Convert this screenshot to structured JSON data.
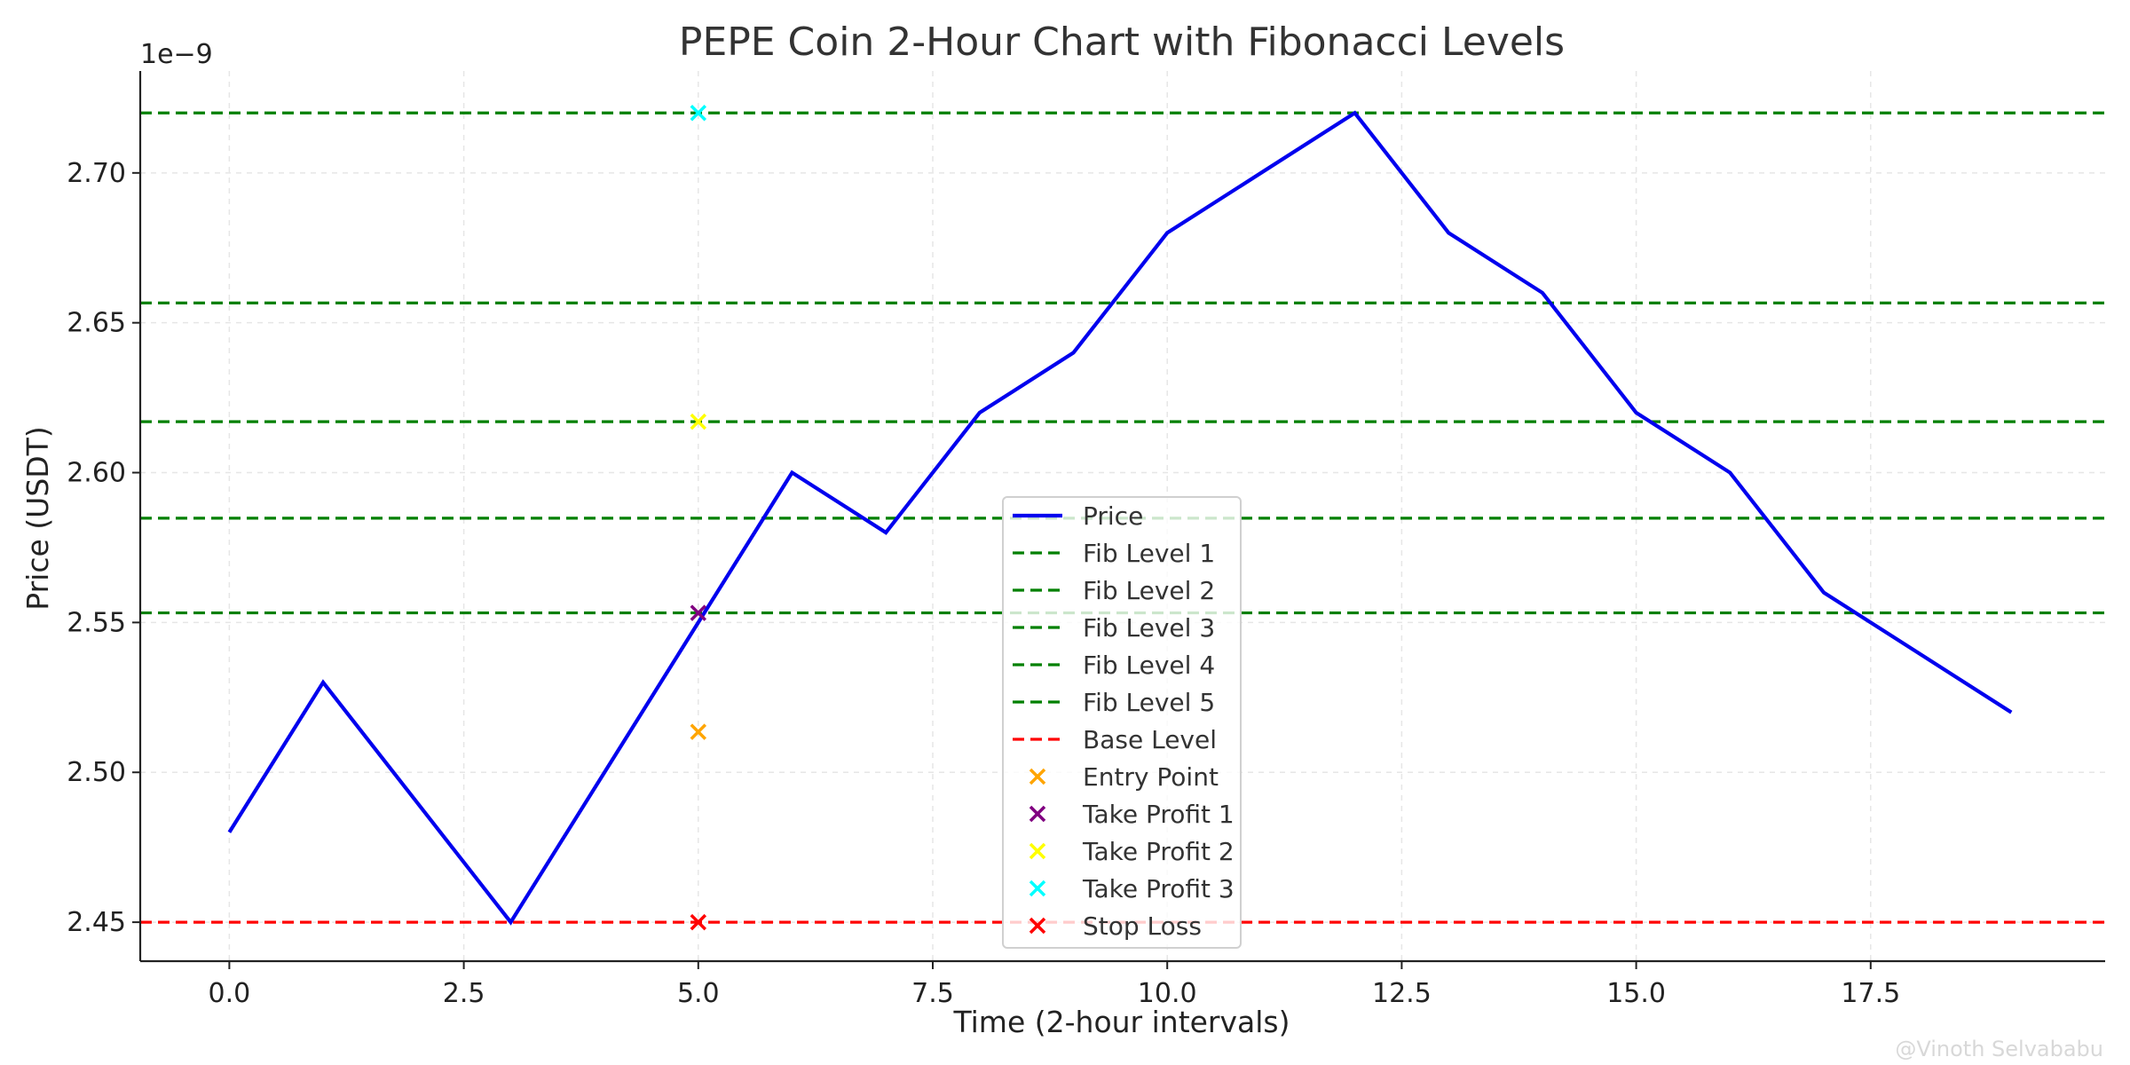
{
  "chart_data": {
    "type": "line",
    "title": "PEPE Coin 2-Hour Chart with Fibonacci Levels",
    "xlabel": "Time (2-hour intervals)",
    "ylabel": "Price (USDT)",
    "y_offset_label": "1e−9",
    "xlim": [
      -0.95,
      20.0
    ],
    "ylim": [
      2.437,
      2.734
    ],
    "x_ticks": [
      0.0,
      2.5,
      5.0,
      7.5,
      10.0,
      12.5,
      15.0,
      17.5
    ],
    "x_tick_labels": [
      "0.0",
      "2.5",
      "5.0",
      "7.5",
      "10.0",
      "12.5",
      "15.0",
      "17.5"
    ],
    "y_ticks": [
      2.45,
      2.5,
      2.55,
      2.6,
      2.65,
      2.7
    ],
    "y_tick_labels": [
      "2.45",
      "2.50",
      "2.55",
      "2.60",
      "2.65",
      "2.70"
    ],
    "grid": true,
    "legend_position": "center-bottom",
    "series": [
      {
        "name": "Price",
        "kind": "line",
        "color": "#0000ee",
        "x": [
          0,
          1,
          2,
          3,
          4,
          5,
          6,
          7,
          8,
          9,
          10,
          11,
          12,
          13,
          14,
          15,
          16,
          17,
          18,
          19
        ],
        "y": [
          2.48,
          2.53,
          2.49,
          2.45,
          2.5,
          2.55,
          2.6,
          2.58,
          2.62,
          2.64,
          2.68,
          2.7,
          2.72,
          2.68,
          2.66,
          2.62,
          2.6,
          2.56,
          2.54,
          2.52
        ]
      }
    ],
    "hlines": [
      {
        "name": "Fib Level 1",
        "y": 2.5532,
        "color": "#008000"
      },
      {
        "name": "Fib Level 2",
        "y": 2.5848,
        "color": "#008000"
      },
      {
        "name": "Fib Level 3",
        "y": 2.617,
        "color": "#008000"
      },
      {
        "name": "Fib Level 4",
        "y": 2.6566,
        "color": "#008000"
      },
      {
        "name": "Fib Level 5",
        "y": 2.72,
        "color": "#008000"
      },
      {
        "name": "Base Level",
        "y": 2.45,
        "color": "#ff0000"
      }
    ],
    "markers": [
      {
        "name": "Entry Point",
        "x": 5,
        "y": 2.5135,
        "color": "#ffa500"
      },
      {
        "name": "Take Profit 1",
        "x": 5,
        "y": 2.5532,
        "color": "#800080"
      },
      {
        "name": "Take Profit 2",
        "x": 5,
        "y": 2.617,
        "color": "#ffff00"
      },
      {
        "name": "Take Profit 3",
        "x": 5,
        "y": 2.72,
        "color": "#00ffff"
      },
      {
        "name": "Stop Loss",
        "x": 5,
        "y": 2.45,
        "color": "#ff0000"
      }
    ]
  },
  "watermark": "@Vinoth Selvababu"
}
